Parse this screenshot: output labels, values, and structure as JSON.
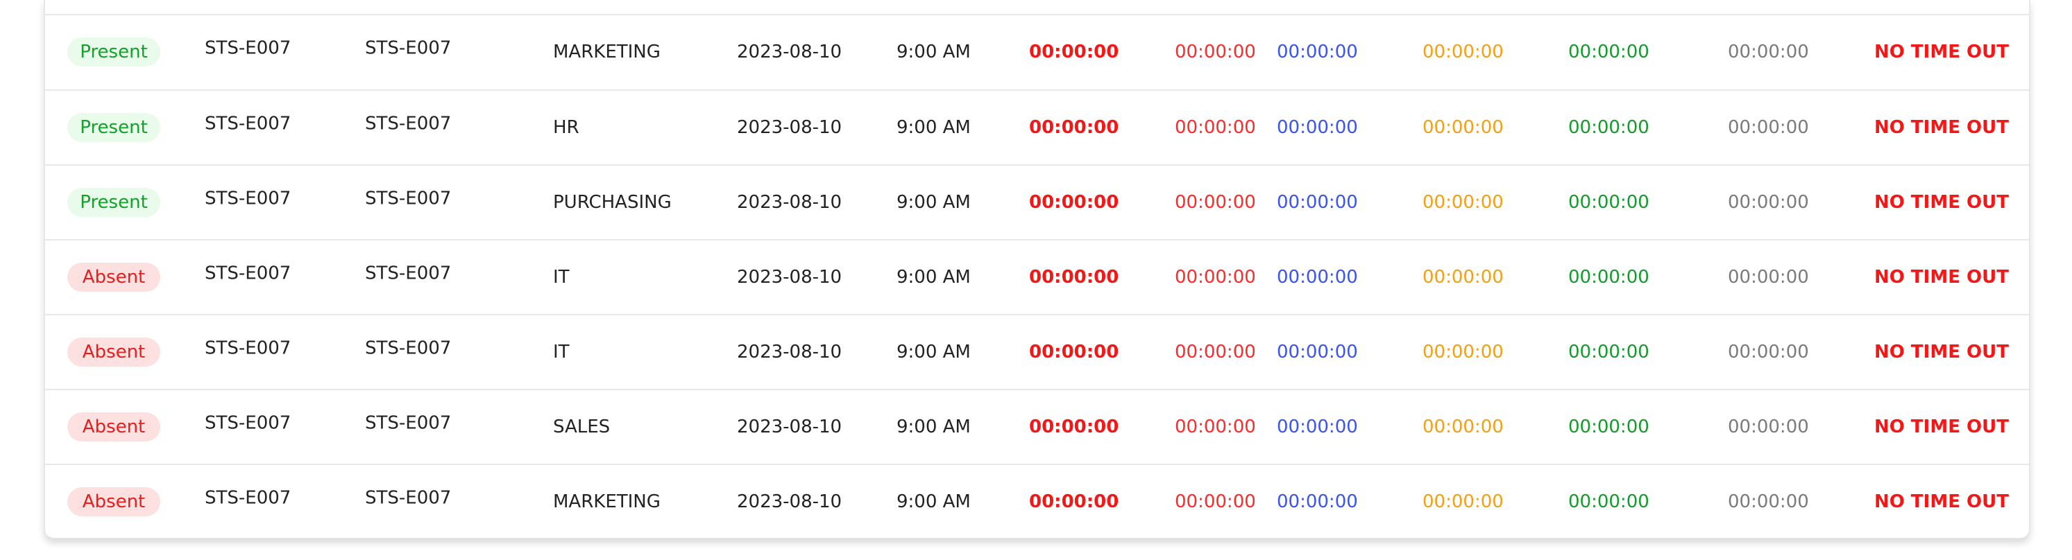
{
  "table": {
    "rows": [
      {
        "status": "Present",
        "status_type": "present",
        "employee_id": "STS-E007",
        "employee_code": "STS-E007",
        "department": "MARKETING",
        "date": "2023-08-10",
        "time_in": "9:00 AM",
        "red_time_1": "00:00:00",
        "red_time_2": "00:00:00",
        "blue_time": "00:00:00",
        "orange_time": "00:00:00",
        "green_time": "00:00:00",
        "gray_time": "00:00:00",
        "time_out_status": "NO TIME OUT"
      },
      {
        "status": "Present",
        "status_type": "present",
        "employee_id": "STS-E007",
        "employee_code": "STS-E007",
        "department": "HR",
        "date": "2023-08-10",
        "time_in": "9:00 AM",
        "red_time_1": "00:00:00",
        "red_time_2": "00:00:00",
        "blue_time": "00:00:00",
        "orange_time": "00:00:00",
        "green_time": "00:00:00",
        "gray_time": "00:00:00",
        "time_out_status": "NO TIME OUT"
      },
      {
        "status": "Present",
        "status_type": "present",
        "employee_id": "STS-E007",
        "employee_code": "STS-E007",
        "department": "PURCHASING",
        "date": "2023-08-10",
        "time_in": "9:00 AM",
        "red_time_1": "00:00:00",
        "red_time_2": "00:00:00",
        "blue_time": "00:00:00",
        "orange_time": "00:00:00",
        "green_time": "00:00:00",
        "gray_time": "00:00:00",
        "time_out_status": "NO TIME OUT"
      },
      {
        "status": "Absent",
        "status_type": "absent",
        "employee_id": "STS-E007",
        "employee_code": "STS-E007",
        "department": "IT",
        "date": "2023-08-10",
        "time_in": "9:00 AM",
        "red_time_1": "00:00:00",
        "red_time_2": "00:00:00",
        "blue_time": "00:00:00",
        "orange_time": "00:00:00",
        "green_time": "00:00:00",
        "gray_time": "00:00:00",
        "time_out_status": "NO TIME OUT"
      },
      {
        "status": "Absent",
        "status_type": "absent",
        "employee_id": "STS-E007",
        "employee_code": "STS-E007",
        "department": "IT",
        "date": "2023-08-10",
        "time_in": "9:00 AM",
        "red_time_1": "00:00:00",
        "red_time_2": "00:00:00",
        "blue_time": "00:00:00",
        "orange_time": "00:00:00",
        "green_time": "00:00:00",
        "gray_time": "00:00:00",
        "time_out_status": "NO TIME OUT"
      },
      {
        "status": "Absent",
        "status_type": "absent",
        "employee_id": "STS-E007",
        "employee_code": "STS-E007",
        "department": "SALES",
        "date": "2023-08-10",
        "time_in": "9:00 AM",
        "red_time_1": "00:00:00",
        "red_time_2": "00:00:00",
        "blue_time": "00:00:00",
        "orange_time": "00:00:00",
        "green_time": "00:00:00",
        "gray_time": "00:00:00",
        "time_out_status": "NO TIME OUT"
      },
      {
        "status": "Absent",
        "status_type": "absent",
        "employee_id": "STS-E007",
        "employee_code": "STS-E007",
        "department": "MARKETING",
        "date": "2023-08-10",
        "time_in": "9:00 AM",
        "red_time_1": "00:00:00",
        "red_time_2": "00:00:00",
        "blue_time": "00:00:00",
        "orange_time": "00:00:00",
        "green_time": "00:00:00",
        "gray_time": "00:00:00",
        "time_out_status": "NO TIME OUT"
      }
    ]
  },
  "colors": {
    "present_text": "#13a02b",
    "present_background": "#e9fbea",
    "absent_text": "#e51e1e",
    "absent_background": "#fde0e0",
    "red_time": "#f31818",
    "blue_time": "#3c55e8",
    "orange_time": "#f2a018",
    "green_time": "#179a2d",
    "gray_time": "#7b7b7b"
  }
}
